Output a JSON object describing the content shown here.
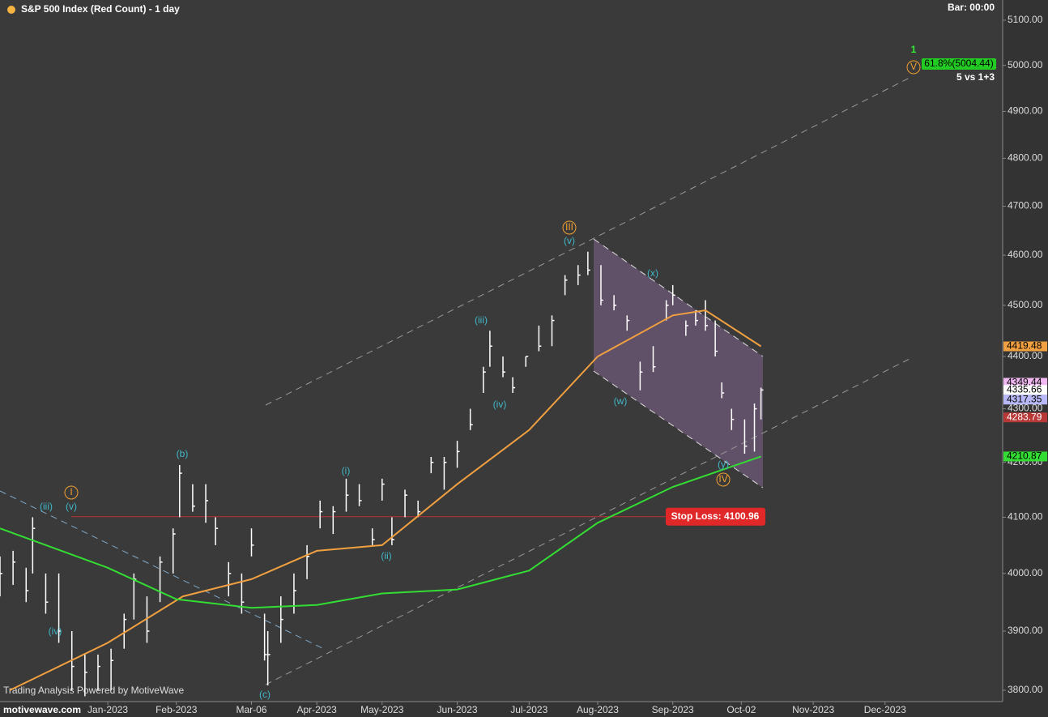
{
  "chart_data": {
    "type": "ohlc",
    "title": "S&P 500 Index (Red Count) - 1 day",
    "bar_time": "Bar: 00:00",
    "watermark": "Trading Analysis Powered by MotiveWave",
    "logo": "motivewave.com",
    "log_scale": true,
    "ylim": [
      3800,
      5100
    ],
    "yticks": [
      {
        "value": 3800,
        "label": "3800.00"
      },
      {
        "value": 3900,
        "label": "3900.00"
      },
      {
        "value": 4000,
        "label": "4000.00"
      },
      {
        "value": 4100,
        "label": "4100.00"
      },
      {
        "value": 4200,
        "label": "4200.00"
      },
      {
        "value": 4300,
        "label": "4300.00"
      },
      {
        "value": 4400,
        "label": "4400.00"
      },
      {
        "value": 4500,
        "label": "4500.00"
      },
      {
        "value": 4600,
        "label": "4600.00"
      },
      {
        "value": 4700,
        "label": "4700.00"
      },
      {
        "value": 4800,
        "label": "4800.00"
      },
      {
        "value": 4900,
        "label": "4900.00"
      },
      {
        "value": 5000,
        "label": "5000.00"
      },
      {
        "value": 5100,
        "label": "5100.00"
      }
    ],
    "xlim": [
      "2022-11-17",
      "2024-01-22"
    ],
    "xticks": [
      {
        "value": "2023-01-03",
        "label": "Jan-2023"
      },
      {
        "value": "2023-02-01",
        "label": "Feb-2023"
      },
      {
        "value": "2023-03-06",
        "label": "Mar-06"
      },
      {
        "value": "2023-04-03",
        "label": "Apr-2023"
      },
      {
        "value": "2023-05-01",
        "label": "May-2023"
      },
      {
        "value": "2023-06-01",
        "label": "Jun-2023"
      },
      {
        "value": "2023-07-03",
        "label": "Jul-2023"
      },
      {
        "value": "2023-08-01",
        "label": "Aug-2023"
      },
      {
        "value": "2023-09-01",
        "label": "Sep-2023"
      },
      {
        "value": "2023-10-02",
        "label": "Oct-02"
      },
      {
        "value": "2023-11-01",
        "label": "Nov-2023"
      },
      {
        "value": "2023-12-01",
        "label": "Dec-2023"
      }
    ],
    "bar_color": "#ffffff",
    "x": [
      "2022-11-17",
      "2022-11-23",
      "2022-11-29",
      "2022-12-01",
      "2022-12-07",
      "2022-12-13",
      "2022-12-19",
      "2022-12-23",
      "2022-12-29",
      "2023-01-04",
      "2023-01-10",
      "2023-01-13",
      "2023-01-19",
      "2023-01-25",
      "2023-01-31",
      "2023-02-02",
      "2023-02-08",
      "2023-02-14",
      "2023-02-17",
      "2023-02-23",
      "2023-03-01",
      "2023-03-06",
      "2023-03-10",
      "2023-03-13",
      "2023-03-17",
      "2023-03-23",
      "2023-03-29",
      "2023-04-04",
      "2023-04-10",
      "2023-04-14",
      "2023-04-20",
      "2023-04-26",
      "2023-05-01",
      "2023-05-04",
      "2023-05-10",
      "2023-05-16",
      "2023-05-22",
      "2023-05-26",
      "2023-06-01",
      "2023-06-07",
      "2023-06-13",
      "2023-06-15",
      "2023-06-21",
      "2023-06-26",
      "2023-06-30",
      "2023-07-06",
      "2023-07-12",
      "2023-07-18",
      "2023-07-24",
      "2023-07-27",
      "2023-08-02",
      "2023-08-08",
      "2023-08-14",
      "2023-08-18",
      "2023-08-24",
      "2023-08-30",
      "2023-09-01",
      "2023-09-07",
      "2023-09-12",
      "2023-09-15",
      "2023-09-20",
      "2023-09-22",
      "2023-09-27",
      "2023-10-03",
      "2023-10-06",
      "2023-10-10"
    ],
    "high": [
      4030,
      4040,
      4010,
      4100,
      4000,
      4000,
      3900,
      3860,
      3860,
      3870,
      3930,
      4000,
      3960,
      4030,
      4080,
      4195,
      4160,
      4160,
      4100,
      4020,
      4000,
      4080,
      3930,
      3900,
      3960,
      4000,
      4050,
      4130,
      4120,
      4170,
      4160,
      4080,
      4170,
      4100,
      4150,
      4130,
      4210,
      4210,
      4240,
      4300,
      4380,
      4450,
      4400,
      4360,
      4400,
      4460,
      4480,
      4560,
      4580,
      4607,
      4580,
      4520,
      4480,
      4390,
      4420,
      4510,
      4540,
      4470,
      4490,
      4510,
      4470,
      4350,
      4300,
      4280,
      4310,
      4340
    ],
    "low": [
      3960,
      3980,
      3950,
      4000,
      3930,
      3880,
      3800,
      3790,
      3800,
      3800,
      3870,
      3920,
      3880,
      3950,
      4000,
      4100,
      4110,
      4090,
      4050,
      3960,
      3930,
      4030,
      3850,
      3808,
      3880,
      3930,
      3990,
      4080,
      4070,
      4110,
      4120,
      4050,
      4130,
      4050,
      4100,
      4100,
      4180,
      4150,
      4190,
      4260,
      4330,
      4380,
      4360,
      4330,
      4380,
      4410,
      4420,
      4520,
      4540,
      4560,
      4500,
      4490,
      4450,
      4335,
      4370,
      4470,
      4500,
      4440,
      4460,
      4450,
      4400,
      4320,
      4260,
      4216,
      4220,
      4280
    ],
    "close": [
      4000,
      4020,
      3970,
      4080,
      3950,
      3900,
      3840,
      3830,
      3840,
      3850,
      3920,
      3990,
      3900,
      4020,
      4070,
      4180,
      4120,
      4130,
      4080,
      4000,
      3950,
      4050,
      3860,
      3860,
      3920,
      3970,
      4030,
      4110,
      4110,
      4140,
      4130,
      4060,
      4160,
      4060,
      4140,
      4110,
      4200,
      4200,
      4220,
      4270,
      4370,
      4420,
      4370,
      4340,
      4400,
      4420,
      4470,
      4550,
      4560,
      4570,
      4510,
      4500,
      4470,
      4370,
      4380,
      4500,
      4520,
      4460,
      4470,
      4460,
      4410,
      4330,
      4280,
      4230,
      4300,
      4335.66
    ],
    "series": [
      {
        "color": "#f0a040",
        "x": [
          "2022-11-22",
          "2023-01-03",
          "2023-02-03",
          "2023-03-06",
          "2023-04-03",
          "2023-05-01",
          "2023-06-01",
          "2023-07-03",
          "2023-08-01",
          "2023-09-01",
          "2023-09-15",
          "2023-10-10"
        ],
        "values": [
          3800,
          3880,
          3960,
          3990,
          4040,
          4050,
          4160,
          4260,
          4400,
          4480,
          4490,
          4419.48
        ]
      },
      {
        "color": "#33dd33",
        "x": [
          "2022-11-17",
          "2023-01-03",
          "2023-02-01",
          "2023-03-06",
          "2023-04-03",
          "2023-05-01",
          "2023-06-01",
          "2023-07-03",
          "2023-08-01",
          "2023-09-01",
          "2023-10-10"
        ],
        "values": [
          4080,
          4010,
          3955,
          3940,
          3945,
          3965,
          3972,
          4005,
          4090,
          4155,
          4210.87
        ]
      }
    ],
    "price_tags": [
      {
        "value": 4419.48,
        "color": "#f0a040",
        "text_color": "#000000"
      },
      {
        "value": 4349.44,
        "color": "#f0b8f0",
        "text_color": "#000000"
      },
      {
        "value": 4335.66,
        "color": "#ffffff",
        "text_color": "#000000"
      },
      {
        "value": 4317.35,
        "color": "#b8b8f8",
        "text_color": "#000000"
      },
      {
        "value": 4283.79,
        "color": "#b83838",
        "text_color": "#ffffff"
      },
      {
        "value": 4210.87,
        "color": "#33dd33",
        "text_color": "#000000"
      }
    ],
    "stop_loss": {
      "label": "Stop Loss:",
      "value": 4100.96
    },
    "target": {
      "label": "61.8%(5004.44)",
      "note": "5 vs 1+3",
      "degree": "1"
    },
    "wave_labels": [
      {
        "text": "(iii)",
        "circled": false
      },
      {
        "text": "(v)",
        "circled": false
      },
      {
        "text": "I",
        "circled": true
      },
      {
        "text": "(iv)",
        "circled": false
      },
      {
        "text": "(b)",
        "circled": false
      },
      {
        "text": "(c)",
        "circled": false
      },
      {
        "text": "(i)",
        "circled": false
      },
      {
        "text": "(ii)",
        "circled": false
      },
      {
        "text": "(iii)",
        "circled": false
      },
      {
        "text": "(iv)",
        "circled": false
      },
      {
        "text": "(v)",
        "circled": false
      },
      {
        "text": "III",
        "circled": true
      },
      {
        "text": "(w)",
        "circled": false
      },
      {
        "text": "(x)",
        "circled": false
      },
      {
        "text": "(y)",
        "circled": false
      },
      {
        "text": "IV",
        "circled": true
      },
      {
        "text": "V",
        "circled": true
      }
    ]
  }
}
